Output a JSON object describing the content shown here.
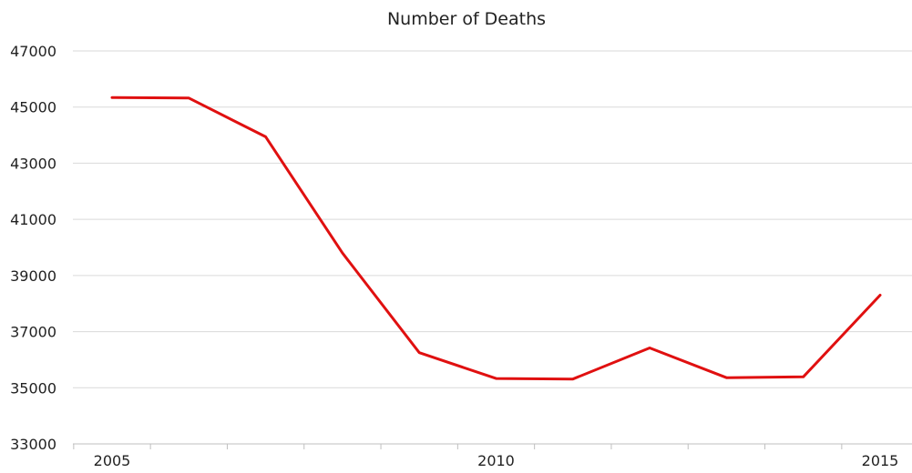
{
  "chart_data": {
    "type": "line",
    "title": "Number of Deaths",
    "xlabel": "",
    "ylabel": "",
    "x": [
      2005,
      2006,
      2007,
      2008,
      2009,
      2010,
      2011,
      2012,
      2013,
      2014,
      2015
    ],
    "x_tick_labels": [
      "2005",
      "2010",
      "2015"
    ],
    "x_tick_values": [
      2005,
      2010,
      2015
    ],
    "y_tick_labels": [
      "33000",
      "35000",
      "37000",
      "39000",
      "41000",
      "43000",
      "45000",
      "47000"
    ],
    "ylim": [
      33000,
      47000
    ],
    "grid": true,
    "legend": "none",
    "series": [
      {
        "color": "#e01010",
        "values": [
          45340,
          45320,
          43940,
          39800,
          36250,
          35330,
          35310,
          36420,
          35360,
          35390,
          38300
        ]
      }
    ]
  }
}
